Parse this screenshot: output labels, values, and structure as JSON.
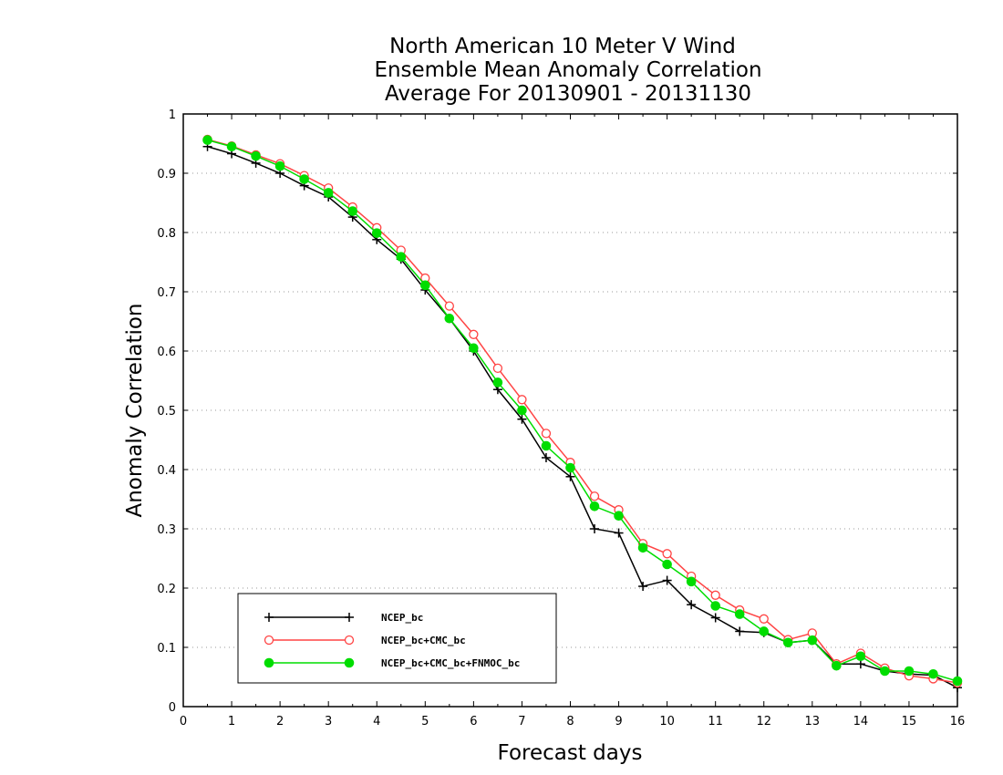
{
  "chart_data": {
    "type": "line",
    "title": [
      "North American 10 Meter V Wind",
      "Ensemble Mean Anomaly Correlation",
      "Average For 20130901 - 20131130"
    ],
    "xlabel": "Forecast days",
    "ylabel": "Anomaly Correlation",
    "xlim": [
      0,
      16
    ],
    "ylim": [
      0,
      1
    ],
    "xticks": [
      "0",
      "1",
      "2",
      "3",
      "4",
      "5",
      "6",
      "7",
      "8",
      "9",
      "10",
      "11",
      "12",
      "13",
      "14",
      "15",
      "16"
    ],
    "yticks": [
      "0",
      "0.1",
      "0.2",
      "0.3",
      "0.4",
      "0.5",
      "0.6",
      "0.7",
      "0.8",
      "0.9",
      "1"
    ],
    "grid": "horizontal dotted",
    "legend_position": "bottom-left",
    "x": [
      0.5,
      1,
      1.5,
      2,
      2.5,
      3,
      3.5,
      4,
      4.5,
      5,
      5.5,
      6,
      6.5,
      7,
      7.5,
      8,
      8.5,
      9,
      9.5,
      10,
      10.5,
      11,
      11.5,
      12,
      12.5,
      13,
      13.5,
      14,
      14.5,
      15,
      15.5,
      16
    ],
    "series": [
      {
        "name": "NCEP_bc",
        "color": "#000000",
        "marker": "plus",
        "values": [
          0.945,
          0.933,
          0.917,
          0.9,
          0.879,
          0.86,
          0.826,
          0.788,
          0.755,
          0.703,
          0.655,
          0.6,
          0.535,
          0.485,
          0.42,
          0.388,
          0.3,
          0.293,
          0.203,
          0.213,
          0.172,
          0.15,
          0.127,
          0.125,
          0.108,
          0.112,
          0.072,
          0.072,
          0.06,
          0.055,
          0.053,
          0.032
        ]
      },
      {
        "name": "NCEP_bc+CMC_bc",
        "color": "#ff4444",
        "marker": "open-circle",
        "values": [
          0.957,
          0.946,
          0.931,
          0.916,
          0.896,
          0.875,
          0.843,
          0.808,
          0.77,
          0.723,
          0.676,
          0.628,
          0.571,
          0.518,
          0.461,
          0.412,
          0.355,
          0.332,
          0.275,
          0.258,
          0.22,
          0.188,
          0.163,
          0.148,
          0.113,
          0.124,
          0.072,
          0.09,
          0.065,
          0.052,
          0.047,
          0.04
        ]
      },
      {
        "name": "NCEP_bc+CMC_bc+FNMOC_bc",
        "color": "#00dd00",
        "marker": "filled-circle",
        "values": [
          0.956,
          0.945,
          0.929,
          0.912,
          0.89,
          0.867,
          0.836,
          0.799,
          0.759,
          0.711,
          0.655,
          0.605,
          0.547,
          0.5,
          0.44,
          0.403,
          0.338,
          0.322,
          0.268,
          0.24,
          0.211,
          0.17,
          0.156,
          0.127,
          0.108,
          0.112,
          0.069,
          0.085,
          0.06,
          0.06,
          0.055,
          0.043
        ]
      }
    ]
  }
}
